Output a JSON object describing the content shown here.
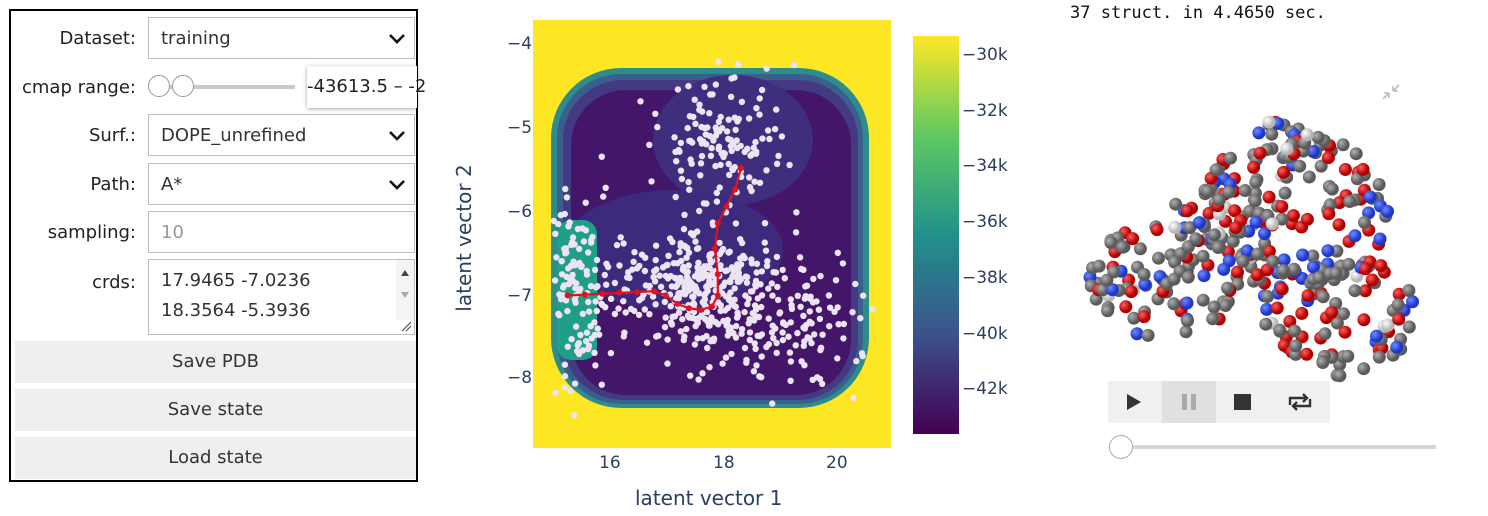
{
  "panel": {
    "dataset": {
      "label": "Dataset:",
      "value": "training"
    },
    "cmap_range": {
      "label": "cmap range:",
      "value": "-43613.5 – -2"
    },
    "surf": {
      "label": "Surf.:",
      "value": "DOPE_unrefined"
    },
    "path": {
      "label": "Path:",
      "value": "A*"
    },
    "sampling": {
      "label": "sampling:",
      "placeholder": "10"
    },
    "crds": {
      "label": "crds:",
      "lines": [
        "17.9465 -7.0236",
        "18.3564 -5.3936"
      ]
    },
    "buttons": {
      "save_pdb": "Save PDB",
      "save_state": "Save state",
      "load_state": "Load state"
    }
  },
  "viewer": {
    "status": "37 struct. in 4.4650 sec.",
    "controls": [
      "play-icon",
      "pause-icon",
      "stop-icon",
      "repeat-icon"
    ],
    "frame_slider": 0
  },
  "chart_data": {
    "type": "heatmap",
    "xlabel": "latent vector 1",
    "ylabel": "latent vector 2",
    "x_ticks": [
      "16",
      "18",
      "20"
    ],
    "y_ticks": [
      "−4",
      "−5",
      "−6",
      "−7",
      "−8"
    ],
    "colorbar_ticks": [
      "−30k",
      "−32k",
      "−34k",
      "−36k",
      "−38k",
      "−40k",
      "−42k"
    ],
    "colorscale": "viridis",
    "xlim": [
      14.7,
      20.9
    ],
    "ylim": [
      -8.85,
      -3.8
    ],
    "path": [
      [
        15.3,
        -7.05
      ],
      [
        15.6,
        -7.04
      ],
      [
        15.9,
        -7.03
      ],
      [
        16.2,
        -7.02
      ],
      [
        16.5,
        -7.01
      ],
      [
        16.8,
        -7.0
      ],
      [
        17.0,
        -7.05
      ],
      [
        17.2,
        -7.15
      ],
      [
        17.4,
        -7.2
      ],
      [
        17.6,
        -7.22
      ],
      [
        17.8,
        -7.18
      ],
      [
        17.9,
        -7.05
      ],
      [
        17.9,
        -6.8
      ],
      [
        17.85,
        -6.5
      ],
      [
        17.9,
        -6.2
      ],
      [
        18.05,
        -6.0
      ],
      [
        18.2,
        -5.8
      ],
      [
        18.3,
        -5.55
      ]
    ],
    "point_clusters": [
      {
        "cx": 15.5,
        "cy": -7.0,
        "sx": 0.25,
        "sy": 0.55,
        "n": 120
      },
      {
        "cx": 17.4,
        "cy": -6.95,
        "sx": 0.75,
        "sy": 0.3,
        "n": 260
      },
      {
        "cx": 18.7,
        "cy": -7.3,
        "sx": 0.9,
        "sy": 0.4,
        "n": 200
      },
      {
        "cx": 18.0,
        "cy": -5.2,
        "sx": 0.5,
        "sy": 0.45,
        "n": 140
      }
    ]
  }
}
